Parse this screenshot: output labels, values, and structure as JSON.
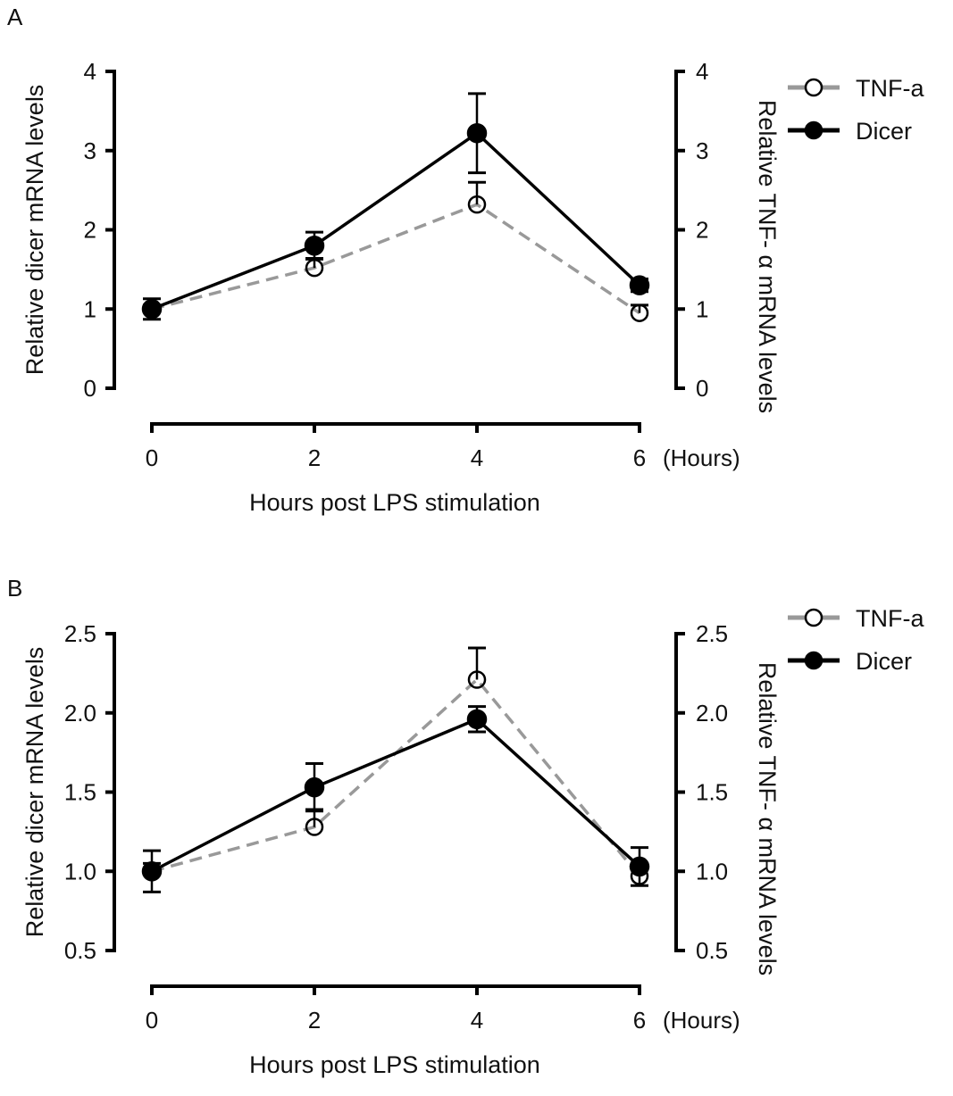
{
  "chart_data": [
    {
      "type": "line",
      "panel_label": "A",
      "x": [
        0,
        2,
        4,
        6
      ],
      "xticks": [
        "0",
        "2",
        "4",
        "6"
      ],
      "x_unit_label": "(Hours)",
      "xlabel": "Hours post LPS stimulation",
      "ylabel": "Relative dicer mRNA levels",
      "ylabel_right": "Relative TNF- α mRNA levels",
      "ylim": [
        0,
        4
      ],
      "yticks": [
        "0",
        "1",
        "2",
        "3",
        "4"
      ],
      "yticks_right": [
        "0",
        "1",
        "2",
        "3",
        "4"
      ],
      "legend_position": "top-right",
      "series": [
        {
          "name": "TNF-a",
          "style": "dashed-open",
          "color": "#999999",
          "values": [
            1.0,
            1.52,
            2.32,
            0.95
          ],
          "error": [
            0.05,
            0.12,
            0.28,
            0.1
          ]
        },
        {
          "name": "Dicer",
          "style": "solid-filled",
          "color": "#000000",
          "values": [
            1.0,
            1.8,
            3.22,
            1.3
          ],
          "error": [
            0.13,
            0.17,
            0.5,
            0.08
          ]
        }
      ]
    },
    {
      "type": "line",
      "panel_label": "B",
      "x": [
        0,
        2,
        4,
        6
      ],
      "xticks": [
        "0",
        "2",
        "4",
        "6"
      ],
      "x_unit_label": "(Hours)",
      "xlabel": "Hours post LPS stimulation",
      "ylabel": "Relative dicer mRNA levels",
      "ylabel_right": "Relative TNF- α mRNA levels",
      "ylim": [
        0.5,
        2.5
      ],
      "yticks": [
        "0.5",
        "1.0",
        "1.5",
        "2.0",
        "2.5"
      ],
      "yticks_right": [
        "0.5",
        "1.0",
        "1.5",
        "2.0",
        "2.5"
      ],
      "legend_position": "top-right",
      "series": [
        {
          "name": "TNF-a",
          "style": "dashed-open",
          "color": "#999999",
          "values": [
            1.0,
            1.28,
            2.21,
            0.97
          ],
          "error": [
            0.05,
            0.11,
            0.2,
            0.05
          ]
        },
        {
          "name": "Dicer",
          "style": "solid-filled",
          "color": "#000000",
          "values": [
            1.0,
            1.53,
            1.96,
            1.03
          ],
          "error": [
            0.13,
            0.15,
            0.08,
            0.12
          ]
        }
      ]
    }
  ]
}
